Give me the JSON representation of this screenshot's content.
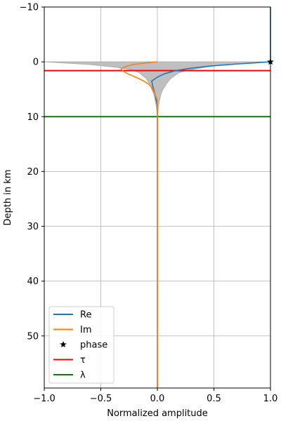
{
  "chart_data": {
    "type": "line",
    "xlabel": "Normalized amplitude",
    "ylabel": "Depth in km",
    "xlim": [
      -1.0,
      1.0
    ],
    "ylim": [
      59.5,
      -10
    ],
    "y_inverted": true,
    "grid": true,
    "legend_position": "lower-left",
    "x_ticks": [
      -1.0,
      -0.5,
      0.0,
      0.5,
      1.0
    ],
    "x_tick_labels": [
      "−1.0",
      "−0.5",
      "0.0",
      "0.5",
      "1.0"
    ],
    "y_ticks": [
      -10,
      0,
      10,
      20,
      30,
      40,
      50
    ],
    "y_tick_labels": [
      "−10",
      "0",
      "10",
      "20",
      "30",
      "40",
      "50"
    ],
    "envelope": {
      "color": "#bfbfbf",
      "depth": [
        0,
        0.5,
        1.0,
        1.5,
        2.0,
        3.0,
        4.0,
        5.0,
        6.0,
        7.0,
        8.0,
        9.0,
        10.0
      ],
      "left": [
        -1.0,
        -0.6,
        -0.36,
        -0.22,
        -0.16,
        -0.1,
        -0.07,
        -0.05,
        -0.03,
        -0.02,
        -0.01,
        -0.005,
        0.0
      ],
      "right": [
        1.0,
        0.6,
        0.42,
        0.28,
        0.19,
        0.12,
        0.08,
        0.05,
        0.03,
        0.02,
        0.01,
        0.005,
        0.0
      ]
    },
    "series": [
      {
        "name": "Re",
        "color": "#1f77b4",
        "x": [
          1.0,
          1.0,
          1.0,
          1.0,
          0.7,
          0.45,
          0.28,
          0.16,
          0.06,
          0.0,
          -0.05,
          -0.04,
          -0.02,
          -0.01,
          0.0,
          0.0,
          0.0,
          0.0
        ],
        "depth": [
          -10,
          -5,
          -1,
          0,
          0.4,
          0.8,
          1.2,
          1.6,
          2.2,
          2.8,
          3.5,
          4.5,
          6.0,
          7.0,
          8.0,
          10.0,
          30.0,
          59.5
        ]
      },
      {
        "name": "Im",
        "color": "#ff7f0e",
        "x": [
          0.0,
          -0.1,
          -0.22,
          -0.27,
          -0.32,
          -0.31,
          -0.26,
          -0.18,
          -0.12,
          -0.07,
          -0.04,
          -0.02,
          0.0,
          0.0,
          0.0,
          0.0
        ],
        "depth": [
          0,
          0.2,
          0.5,
          0.8,
          1.2,
          1.6,
          2.2,
          2.9,
          3.5,
          4.2,
          5.0,
          6.0,
          7.0,
          10.0,
          30.0,
          59.5
        ]
      }
    ],
    "phase": {
      "name": "phase",
      "color": "#000000",
      "marker": "star",
      "x": 1.0,
      "depth": 0.0
    },
    "hlines": [
      {
        "name": "τ",
        "color": "#ff0000",
        "depth": 1.6
      },
      {
        "name": "λ",
        "color": "#008000",
        "depth": 10.0
      }
    ]
  }
}
